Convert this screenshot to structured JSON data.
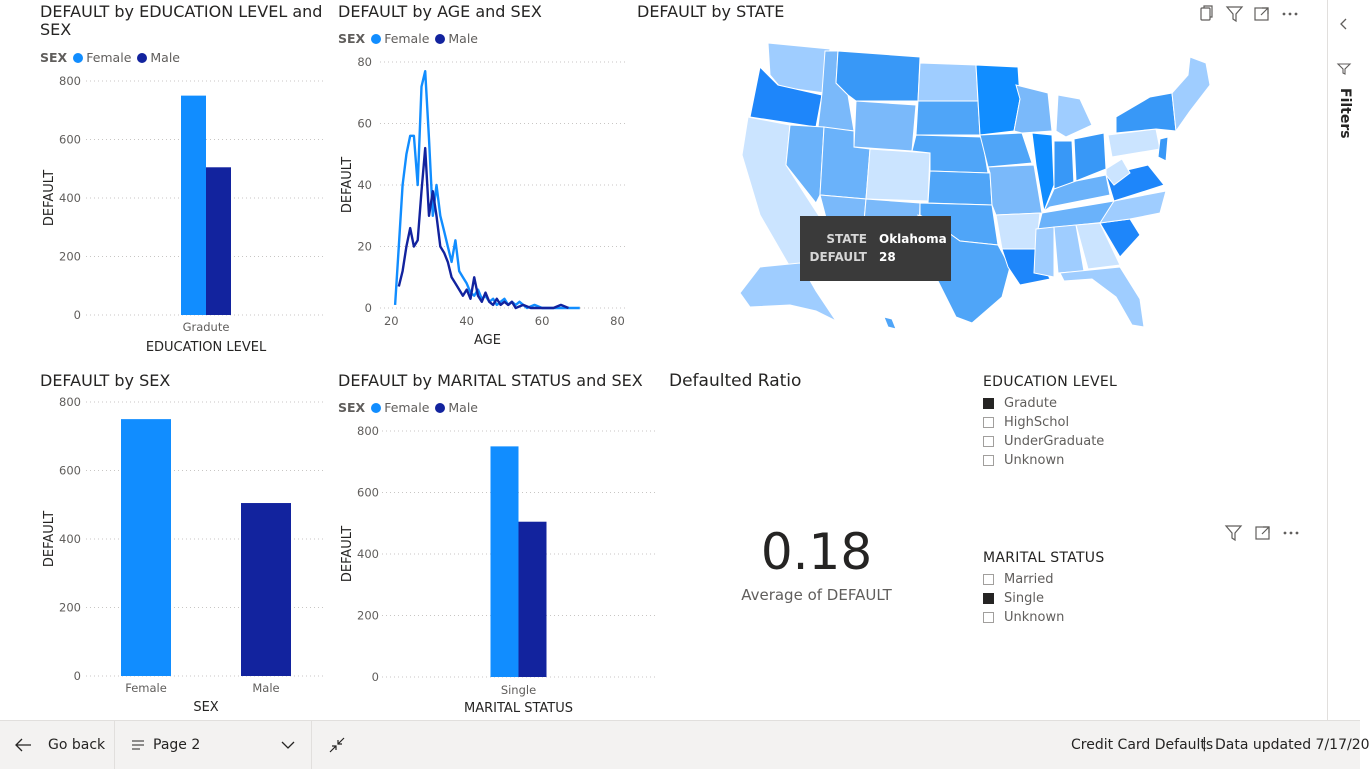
{
  "colors": {
    "female": "#118DFF",
    "male": "#12239E",
    "grid": "#C8C6C4",
    "axis_text": "#605E5C"
  },
  "visuals": {
    "edu": {
      "title_line1": "DEFAULT by EDUCATION LEVEL and",
      "title_line2": "SEX"
    },
    "age": {
      "title": "DEFAULT by AGE and SEX"
    },
    "state": {
      "title": "DEFAULT by STATE"
    },
    "sex": {
      "title": "DEFAULT by SEX"
    },
    "marital": {
      "title": "DEFAULT by MARITAL STATUS and SEX"
    },
    "ratio": {
      "title": "Defaulted Ratio",
      "value": "0.18",
      "label": "Average of DEFAULT"
    }
  },
  "legend": {
    "title": "SEX",
    "female": "Female",
    "male": "Male"
  },
  "map_tooltip": {
    "state_key": "STATE",
    "state_value": "Oklahoma",
    "default_key": "DEFAULT",
    "default_value": "28"
  },
  "visual_header_icons": [
    "copy-icon",
    "filter-icon",
    "focus-mode-icon",
    "more-options-icon"
  ],
  "slicers": {
    "education": {
      "title": "EDUCATION LEVEL",
      "items": [
        {
          "label": "Gradute",
          "checked": true
        },
        {
          "label": "HighSchol",
          "checked": false
        },
        {
          "label": "UnderGraduate",
          "checked": false
        },
        {
          "label": "Unknown",
          "checked": false
        }
      ]
    },
    "marital": {
      "title": "MARITAL STATUS",
      "items": [
        {
          "label": "Married",
          "checked": false
        },
        {
          "label": "Single",
          "checked": true
        },
        {
          "label": "Unknown",
          "checked": false
        }
      ]
    }
  },
  "filters_pane": {
    "label": "Filters"
  },
  "bottom_bar": {
    "go_back": "Go back",
    "page": "Page 2",
    "report_name": "Credit Card Defaults",
    "divider": "|",
    "updated": "Data updated 7/17/20"
  },
  "chart_data": [
    {
      "type": "bar",
      "title": "DEFAULT by EDUCATION LEVEL and SEX",
      "categories": [
        "Gradute"
      ],
      "series": [
        {
          "name": "Female",
          "values": [
            750
          ]
        },
        {
          "name": "Male",
          "values": [
            505
          ]
        }
      ],
      "xlabel": "EDUCATION LEVEL",
      "ylabel": "DEFAULT",
      "yticks": [
        "0",
        "200",
        "400",
        "600",
        "800"
      ],
      "ylim": [
        0,
        800
      ],
      "legend_title": "SEX",
      "legend_position": "top-left",
      "grid": true
    },
    {
      "type": "line",
      "title": "DEFAULT by AGE and SEX",
      "series": [
        {
          "name": "Female",
          "points": [
            [
              21,
              1
            ],
            [
              22,
              20
            ],
            [
              23,
              40
            ],
            [
              24,
              50
            ],
            [
              25,
              56
            ],
            [
              26,
              56
            ],
            [
              27,
              40
            ],
            [
              28,
              72
            ],
            [
              29,
              77
            ],
            [
              30,
              55
            ],
            [
              31,
              30
            ],
            [
              32,
              40
            ],
            [
              33,
              30
            ],
            [
              34,
              25
            ],
            [
              35,
              20
            ],
            [
              36,
              15
            ],
            [
              37,
              22
            ],
            [
              38,
              12
            ],
            [
              39,
              10
            ],
            [
              40,
              8
            ],
            [
              41,
              5
            ],
            [
              42,
              4
            ],
            [
              43,
              6
            ],
            [
              44,
              3
            ],
            [
              45,
              4
            ],
            [
              46,
              2
            ],
            [
              47,
              3
            ],
            [
              48,
              1
            ],
            [
              49,
              2
            ],
            [
              50,
              3
            ],
            [
              51,
              1
            ],
            [
              52,
              2
            ],
            [
              53,
              1
            ],
            [
              54,
              2
            ],
            [
              55,
              1
            ],
            [
              56,
              0
            ],
            [
              58,
              1
            ],
            [
              60,
              0
            ],
            [
              62,
              0
            ],
            [
              65,
              0
            ],
            [
              70,
              0
            ]
          ]
        },
        {
          "name": "Male",
          "points": [
            [
              22,
              7
            ],
            [
              23,
              12
            ],
            [
              24,
              20
            ],
            [
              25,
              26
            ],
            [
              26,
              20
            ],
            [
              27,
              22
            ],
            [
              28,
              38
            ],
            [
              29,
              52
            ],
            [
              30,
              30
            ],
            [
              31,
              38
            ],
            [
              32,
              30
            ],
            [
              33,
              20
            ],
            [
              34,
              18
            ],
            [
              35,
              15
            ],
            [
              36,
              10
            ],
            [
              37,
              8
            ],
            [
              38,
              6
            ],
            [
              39,
              4
            ],
            [
              40,
              6
            ],
            [
              41,
              3
            ],
            [
              42,
              10
            ],
            [
              43,
              4
            ],
            [
              44,
              2
            ],
            [
              45,
              5
            ],
            [
              46,
              2
            ],
            [
              47,
              1
            ],
            [
              48,
              3
            ],
            [
              49,
              1
            ],
            [
              50,
              2
            ],
            [
              51,
              1
            ],
            [
              52,
              2
            ],
            [
              53,
              0
            ],
            [
              55,
              1
            ],
            [
              57,
              0
            ],
            [
              60,
              0
            ],
            [
              63,
              0
            ],
            [
              65,
              1
            ],
            [
              67,
              0
            ]
          ]
        }
      ],
      "xlabel": "AGE",
      "ylabel": "DEFAULT",
      "xticks": [
        "20",
        "40",
        "60",
        "80"
      ],
      "xlim": [
        17,
        82
      ],
      "yticks": [
        "0",
        "20",
        "40",
        "60",
        "80"
      ],
      "ylim": [
        0,
        80
      ],
      "legend_title": "SEX",
      "legend_position": "top-left",
      "grid": true
    },
    {
      "type": "bar",
      "title": "DEFAULT by SEX",
      "categories": [
        "Female",
        "Male"
      ],
      "series": [
        {
          "values": [
            750,
            505
          ]
        }
      ],
      "xlabel": "SEX",
      "ylabel": "DEFAULT",
      "yticks": [
        "0",
        "200",
        "400",
        "600",
        "800"
      ],
      "ylim": [
        0,
        800
      ],
      "grid": true
    },
    {
      "type": "bar",
      "title": "DEFAULT by MARITAL STATUS and SEX",
      "categories": [
        "Single"
      ],
      "series": [
        {
          "name": "Female",
          "values": [
            750
          ]
        },
        {
          "name": "Male",
          "values": [
            505
          ]
        }
      ],
      "xlabel": "MARITAL STATUS",
      "ylabel": "DEFAULT",
      "yticks": [
        "0",
        "200",
        "400",
        "600",
        "800"
      ],
      "ylim": [
        0,
        800
      ],
      "legend_title": "SEX",
      "legend_position": "top-left",
      "grid": true
    }
  ]
}
